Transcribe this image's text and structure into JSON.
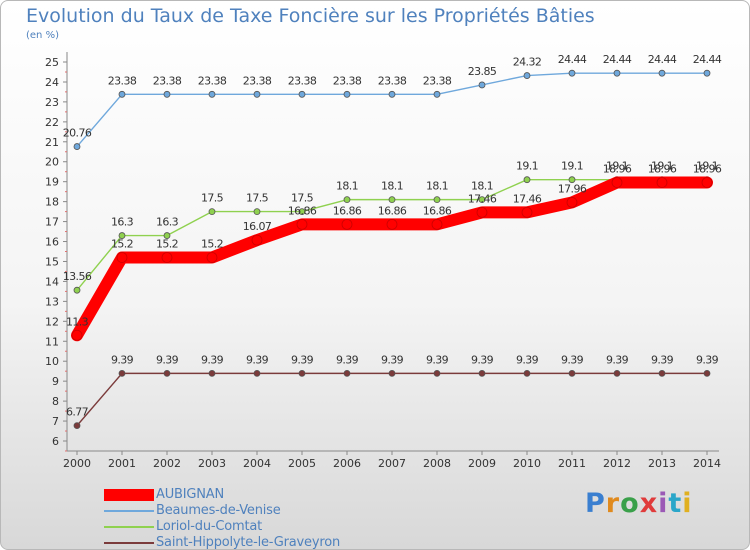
{
  "title": "Evolution du Taux de Taxe Foncière sur les Propriétés Bâties",
  "subtitle": "(en %)",
  "logo": {
    "text": "Proxiti",
    "colors": [
      "#3a7fd0",
      "#e08a1e",
      "#3aa04a",
      "#e03b3b",
      "#9b59b6",
      "#2aa6c9",
      "#e0b020"
    ]
  },
  "chart_data": {
    "type": "line",
    "title": "Evolution du Taux de Taxe Foncière sur les Propriétés Bâties",
    "ylabel": "(en %)",
    "x": [
      "2000",
      "2001",
      "2002",
      "2003",
      "2004",
      "2005",
      "2006",
      "2007",
      "2008",
      "2009",
      "2010",
      "2011",
      "2012",
      "2013",
      "2014"
    ],
    "ylim": [
      6,
      25
    ],
    "yticks": [
      "6",
      "7",
      "8",
      "9",
      "10",
      "11",
      "12",
      "13",
      "14",
      "15",
      "16",
      "17",
      "18",
      "19",
      "20",
      "21",
      "22",
      "23",
      "24",
      "25"
    ],
    "grid": false,
    "legend_position": "bottom-left",
    "series": [
      {
        "name": "AUBIGNAN",
        "color": "#ff0000",
        "values": [
          11.3,
          15.2,
          15.2,
          15.2,
          16.07,
          16.86,
          16.86,
          16.86,
          16.86,
          17.46,
          17.46,
          17.96,
          18.96,
          18.96,
          18.96
        ],
        "labels": [
          "11.3",
          "15.2",
          "15.2",
          "15.2",
          "16.07",
          "16.86",
          "16.86",
          "16.86",
          "16.86",
          "17.46",
          "17.46",
          "17.96",
          "18.96",
          "18.96",
          "18.96"
        ]
      },
      {
        "name": "Beaumes-de-Venise",
        "color": "#6fa8dc",
        "values": [
          20.76,
          23.38,
          23.38,
          23.38,
          23.38,
          23.38,
          23.38,
          23.38,
          23.38,
          23.85,
          24.32,
          24.44,
          24.44,
          24.44,
          24.44
        ],
        "labels": [
          "20.76",
          "23.38",
          "23.38",
          "23.38",
          "23.38",
          "23.38",
          "23.38",
          "23.38",
          "23.38",
          "23.85",
          "24.32",
          "24.44",
          "24.44",
          "24.44",
          "24.44"
        ]
      },
      {
        "name": "Loriol-du-Comtat",
        "color": "#8fd14f",
        "values": [
          13.56,
          16.3,
          16.3,
          17.5,
          17.5,
          17.5,
          18.1,
          18.1,
          18.1,
          18.1,
          19.1,
          19.1,
          19.1,
          19.1,
          19.1
        ],
        "labels": [
          "13.56",
          "16.3",
          "16.3",
          "17.5",
          "17.5",
          "17.5",
          "18.1",
          "18.1",
          "18.1",
          "18.1",
          "19.1",
          "19.1",
          "19.1",
          "19.1",
          "19.1"
        ]
      },
      {
        "name": "Saint-Hippolyte-le-Graveyron",
        "color": "#7b3b3b",
        "values": [
          6.77,
          9.39,
          9.39,
          9.39,
          9.39,
          9.39,
          9.39,
          9.39,
          9.39,
          9.39,
          9.39,
          9.39,
          9.39,
          9.39,
          9.39
        ],
        "labels": [
          "6.77",
          "9.39",
          "9.39",
          "9.39",
          "9.39",
          "9.39",
          "9.39",
          "9.39",
          "9.39",
          "9.39",
          "9.39",
          "9.39",
          "9.39",
          "9.39",
          "9.39"
        ]
      }
    ]
  }
}
